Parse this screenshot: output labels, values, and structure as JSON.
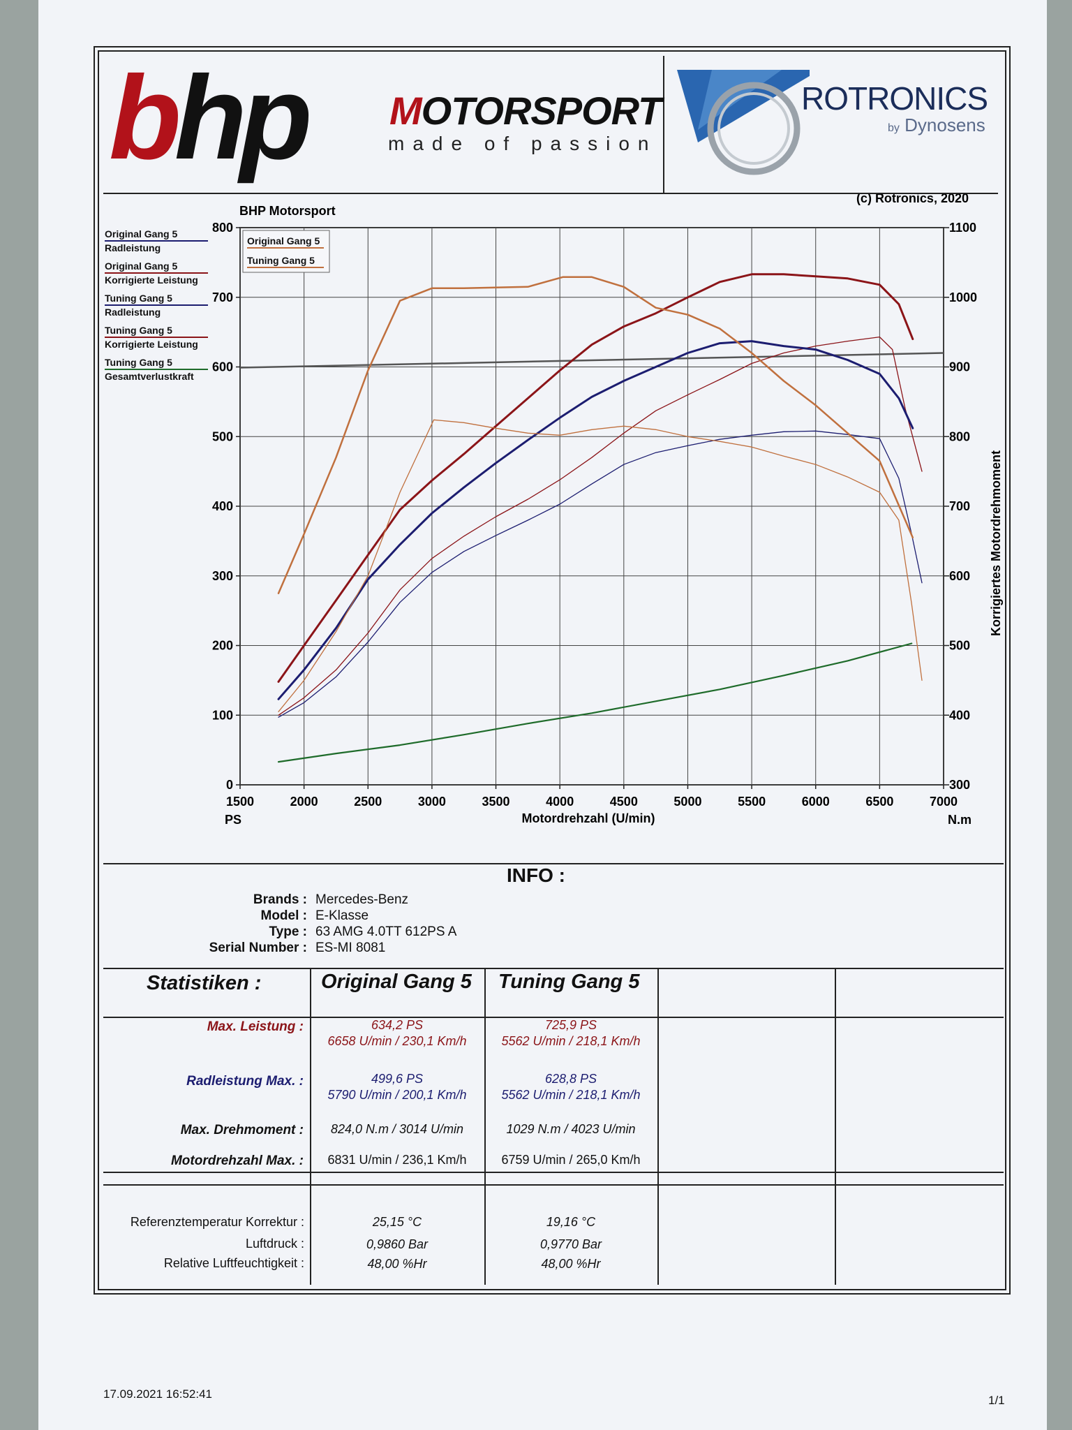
{
  "header": {
    "logo_left_b": "b",
    "logo_left_hp": "hp",
    "logo_left_m": "M",
    "logo_left_otorsport": "OTORSPORT",
    "logo_left_tagline": "made of passion",
    "logo_right_name": "ROTRONICS",
    "logo_right_by": "by",
    "logo_right_sub": "Dynosens"
  },
  "chart_data": {
    "type": "line",
    "title": "BHP Motorsport",
    "copyright": "(c) Rotronics, 2020",
    "xlabel": "Motordrehzahl (U/min)",
    "ylabel_left_unit": "PS",
    "ylabel_right": "Korrigiertes Motordrehmoment",
    "ylabel_right_unit": "N.m",
    "xlim": [
      1500,
      7000
    ],
    "ylim_left": [
      0,
      800
    ],
    "ylim_right": [
      300,
      1100
    ],
    "x_ticks": [
      "1500",
      "2000",
      "2500",
      "3000",
      "3500",
      "4000",
      "4500",
      "5000",
      "5500",
      "6000",
      "6500",
      "7000"
    ],
    "y_ticks_left": [
      "0",
      "100",
      "200",
      "300",
      "400",
      "500",
      "600",
      "700",
      "800"
    ],
    "y_ticks_right": [
      "300",
      "400",
      "500",
      "600",
      "700",
      "800",
      "900",
      "1000",
      "1100"
    ],
    "grid": true,
    "legend_left": [
      {
        "line1": "Original Gang 5",
        "line2": "Radleistung",
        "color": "#1c1d70"
      },
      {
        "line1": "Original Gang 5",
        "line2": "Korrigierte Leistung",
        "color": "#8b1418"
      },
      {
        "line1": "Tuning Gang 5",
        "line2": "Radleistung",
        "color": "#1c1d70"
      },
      {
        "line1": "Tuning Gang 5",
        "line2": "Korrigierte Leistung",
        "color": "#8b1418"
      },
      {
        "line1": "Tuning Gang 5",
        "line2": "Gesamtverlustkraft",
        "color": "#1e6b2a"
      }
    ],
    "legend_torque": [
      {
        "label": "Original Gang 5",
        "color": "#c0703e"
      },
      {
        "label": "Tuning Gang 5",
        "color": "#c0703e"
      }
    ],
    "series": [
      {
        "name": "Original Gang 5 Radleistung",
        "axis": "left",
        "color": "#1c1d70",
        "width": 1.3,
        "points": [
          [
            1800,
            97
          ],
          [
            2000,
            118
          ],
          [
            2250,
            155
          ],
          [
            2500,
            205
          ],
          [
            2750,
            262
          ],
          [
            3000,
            305
          ],
          [
            3250,
            335
          ],
          [
            3500,
            358
          ],
          [
            3750,
            380
          ],
          [
            4000,
            403
          ],
          [
            4250,
            432
          ],
          [
            4500,
            460
          ],
          [
            4750,
            477
          ],
          [
            5000,
            487
          ],
          [
            5250,
            496
          ],
          [
            5500,
            502
          ],
          [
            5750,
            507
          ],
          [
            6000,
            508
          ],
          [
            6250,
            503
          ],
          [
            6500,
            497
          ],
          [
            6650,
            440
          ],
          [
            6750,
            360
          ],
          [
            6831,
            290
          ]
        ]
      },
      {
        "name": "Original Gang 5 Korrigierte Leistung",
        "axis": "left",
        "color": "#8b1418",
        "width": 1.3,
        "points": [
          [
            1800,
            100
          ],
          [
            2000,
            125
          ],
          [
            2250,
            165
          ],
          [
            2500,
            218
          ],
          [
            2750,
            280
          ],
          [
            3000,
            325
          ],
          [
            3250,
            357
          ],
          [
            3500,
            385
          ],
          [
            3750,
            410
          ],
          [
            4000,
            438
          ],
          [
            4250,
            470
          ],
          [
            4500,
            505
          ],
          [
            4750,
            537
          ],
          [
            5000,
            560
          ],
          [
            5250,
            582
          ],
          [
            5500,
            605
          ],
          [
            5750,
            620
          ],
          [
            6000,
            630
          ],
          [
            6250,
            637
          ],
          [
            6500,
            643
          ],
          [
            6600,
            625
          ],
          [
            6700,
            540
          ],
          [
            6831,
            450
          ]
        ]
      },
      {
        "name": "Tuning Gang 5 Radleistung",
        "axis": "left",
        "color": "#1c1d70",
        "width": 3,
        "points": [
          [
            1800,
            123
          ],
          [
            2000,
            165
          ],
          [
            2250,
            225
          ],
          [
            2500,
            295
          ],
          [
            2750,
            345
          ],
          [
            3000,
            390
          ],
          [
            3250,
            427
          ],
          [
            3500,
            462
          ],
          [
            3750,
            495
          ],
          [
            4000,
            527
          ],
          [
            4250,
            557
          ],
          [
            4500,
            580
          ],
          [
            4750,
            600
          ],
          [
            5000,
            620
          ],
          [
            5250,
            634
          ],
          [
            5500,
            637
          ],
          [
            5750,
            630
          ],
          [
            6000,
            625
          ],
          [
            6250,
            610
          ],
          [
            6500,
            590
          ],
          [
            6650,
            555
          ],
          [
            6759,
            512
          ]
        ]
      },
      {
        "name": "Tuning Gang 5 Korrigierte Leistung",
        "axis": "left",
        "color": "#8b1418",
        "width": 3,
        "points": [
          [
            1800,
            148
          ],
          [
            2000,
            200
          ],
          [
            2250,
            265
          ],
          [
            2500,
            330
          ],
          [
            2750,
            395
          ],
          [
            3000,
            437
          ],
          [
            3250,
            475
          ],
          [
            3500,
            515
          ],
          [
            3750,
            555
          ],
          [
            4000,
            595
          ],
          [
            4250,
            632
          ],
          [
            4500,
            658
          ],
          [
            4750,
            677
          ],
          [
            5000,
            700
          ],
          [
            5250,
            722
          ],
          [
            5500,
            733
          ],
          [
            5750,
            733
          ],
          [
            6000,
            730
          ],
          [
            6250,
            727
          ],
          [
            6500,
            718
          ],
          [
            6650,
            690
          ],
          [
            6759,
            640
          ]
        ]
      },
      {
        "name": "Tuning Gang 5 Gesamtverlustkraft",
        "axis": "left",
        "color": "#1e6b2a",
        "width": 2.2,
        "points": [
          [
            1800,
            33
          ],
          [
            2250,
            45
          ],
          [
            2750,
            57
          ],
          [
            3250,
            72
          ],
          [
            3750,
            88
          ],
          [
            4250,
            103
          ],
          [
            4750,
            120
          ],
          [
            5250,
            137
          ],
          [
            5750,
            157
          ],
          [
            6250,
            178
          ],
          [
            6750,
            203
          ]
        ]
      },
      {
        "name": "Original Gang 5 Drehmoment",
        "axis": "right",
        "color": "#c0703e",
        "width": 1.3,
        "points": [
          [
            1800,
            405
          ],
          [
            2000,
            450
          ],
          [
            2250,
            520
          ],
          [
            2500,
            600
          ],
          [
            2750,
            720
          ],
          [
            3014,
            824
          ],
          [
            3250,
            820
          ],
          [
            3500,
            812
          ],
          [
            3750,
            805
          ],
          [
            4000,
            802
          ],
          [
            4250,
            810
          ],
          [
            4500,
            815
          ],
          [
            4750,
            810
          ],
          [
            5000,
            800
          ],
          [
            5250,
            793
          ],
          [
            5500,
            785
          ],
          [
            5750,
            772
          ],
          [
            6000,
            760
          ],
          [
            6250,
            742
          ],
          [
            6500,
            720
          ],
          [
            6650,
            680
          ],
          [
            6750,
            560
          ],
          [
            6831,
            450
          ]
        ]
      },
      {
        "name": "Tuning Gang 5 Drehmoment",
        "axis": "right",
        "color": "#c0703e",
        "width": 2.5,
        "points": [
          [
            1800,
            575
          ],
          [
            2000,
            660
          ],
          [
            2250,
            770
          ],
          [
            2500,
            895
          ],
          [
            2750,
            995
          ],
          [
            3000,
            1013
          ],
          [
            3250,
            1013
          ],
          [
            3500,
            1014
          ],
          [
            3750,
            1015
          ],
          [
            4023,
            1029
          ],
          [
            4250,
            1029
          ],
          [
            4500,
            1015
          ],
          [
            4750,
            985
          ],
          [
            5000,
            975
          ],
          [
            5250,
            955
          ],
          [
            5500,
            920
          ],
          [
            5750,
            880
          ],
          [
            6000,
            845
          ],
          [
            6250,
            805
          ],
          [
            6500,
            765
          ],
          [
            6759,
            655
          ]
        ]
      }
    ],
    "reference_line": {
      "axis": "right",
      "color": "#555",
      "points": [
        [
          1500,
          899
        ],
        [
          7000,
          920
        ]
      ]
    }
  },
  "info": {
    "title": "INFO :",
    "rows": [
      {
        "key": "Brands :",
        "value": "Mercedes-Benz"
      },
      {
        "key": "Model :",
        "value": "E-Klasse"
      },
      {
        "key": "Type :",
        "value": "63 AMG 4.0TT 612PS A"
      },
      {
        "key": "Serial Number :",
        "value": "ES-MI 8081"
      }
    ]
  },
  "stats": {
    "title": "Statistiken :",
    "col1": "Original Gang 5",
    "col2": "Tuning Gang 5",
    "rows": [
      {
        "label": "Max.  Leistung :",
        "c1a": "634,2 PS",
        "c1b": "6658 U/min / 230,1 Km/h",
        "c2a": "725,9 PS",
        "c2b": "5562 U/min / 218,1 Km/h"
      },
      {
        "label": "Radleistung Max. :",
        "c1a": "499,6 PS",
        "c1b": "5790 U/min / 200,1 Km/h",
        "c2a": "628,8 PS",
        "c2b": "5562 U/min / 218,1 Km/h"
      },
      {
        "label": "Max. Drehmoment :",
        "c1a": "824,0 N.m / 3014 U/min",
        "c2a": "1029 N.m / 4023 U/min"
      },
      {
        "label": "Motordrehzahl Max. :",
        "c1a": "6831 U/min / 236,1 Km/h",
        "c2a": "6759 U/min / 265,0 Km/h"
      }
    ]
  },
  "ref": {
    "rows": [
      {
        "label": "Referenztemperatur Korrektur :",
        "c1": "25,15 °C",
        "c2": "19,16 °C"
      },
      {
        "label": "Luftdruck :",
        "c1": "0,9860 Bar",
        "c2": "0,9770 Bar"
      },
      {
        "label": "Relative Luftfeuchtigkeit :",
        "c1": "48,00 %Hr",
        "c2": "48,00 %Hr"
      }
    ]
  },
  "footer": {
    "timestamp": "17.09.2021 16:52:41",
    "page": "1/1"
  }
}
